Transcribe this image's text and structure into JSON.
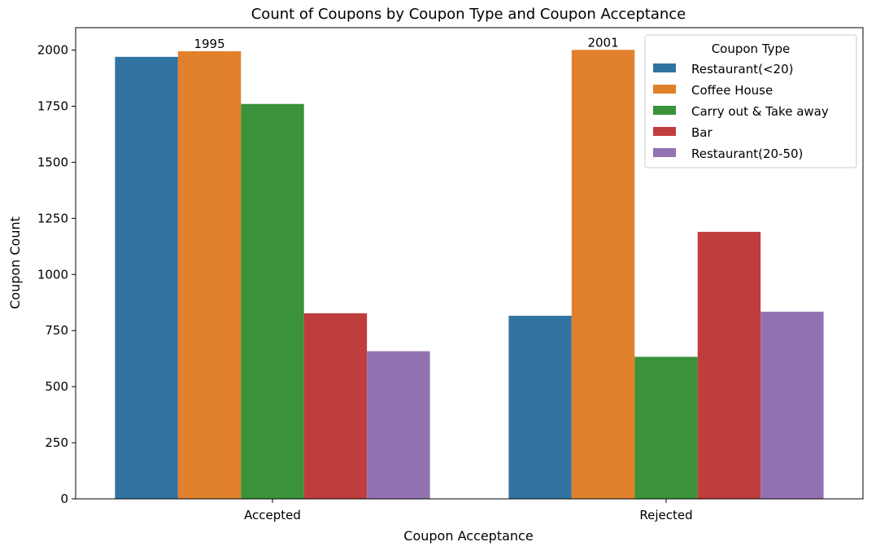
{
  "chart_data": {
    "type": "bar",
    "title": "Count of Coupons by Coupon Type and Coupon Acceptance",
    "xlabel": "Coupon Acceptance",
    "ylabel": "Coupon Count",
    "categories": [
      "Accepted",
      "Rejected"
    ],
    "ylim": [
      0,
      2100
    ],
    "yticks": [
      0,
      250,
      500,
      750,
      1000,
      1250,
      1500,
      1750,
      2000
    ],
    "grid": false,
    "legend": {
      "title": "Coupon Type",
      "placement": "top-right"
    },
    "series": [
      {
        "name": "Restaurant(<20)",
        "color": "#3274a1",
        "values": [
          1970,
          816
        ]
      },
      {
        "name": "Coffee House",
        "color": "#e1812c",
        "values": [
          1995,
          2001
        ],
        "data_labels": [
          "1995",
          "2001"
        ]
      },
      {
        "name": "Carry out & Take away",
        "color": "#3a923a",
        "values": [
          1760,
          633
        ]
      },
      {
        "name": "Bar",
        "color": "#c03d3e",
        "values": [
          827,
          1190
        ]
      },
      {
        "name": "Restaurant(20-50)",
        "color": "#9372b2",
        "values": [
          658,
          834
        ]
      }
    ]
  }
}
